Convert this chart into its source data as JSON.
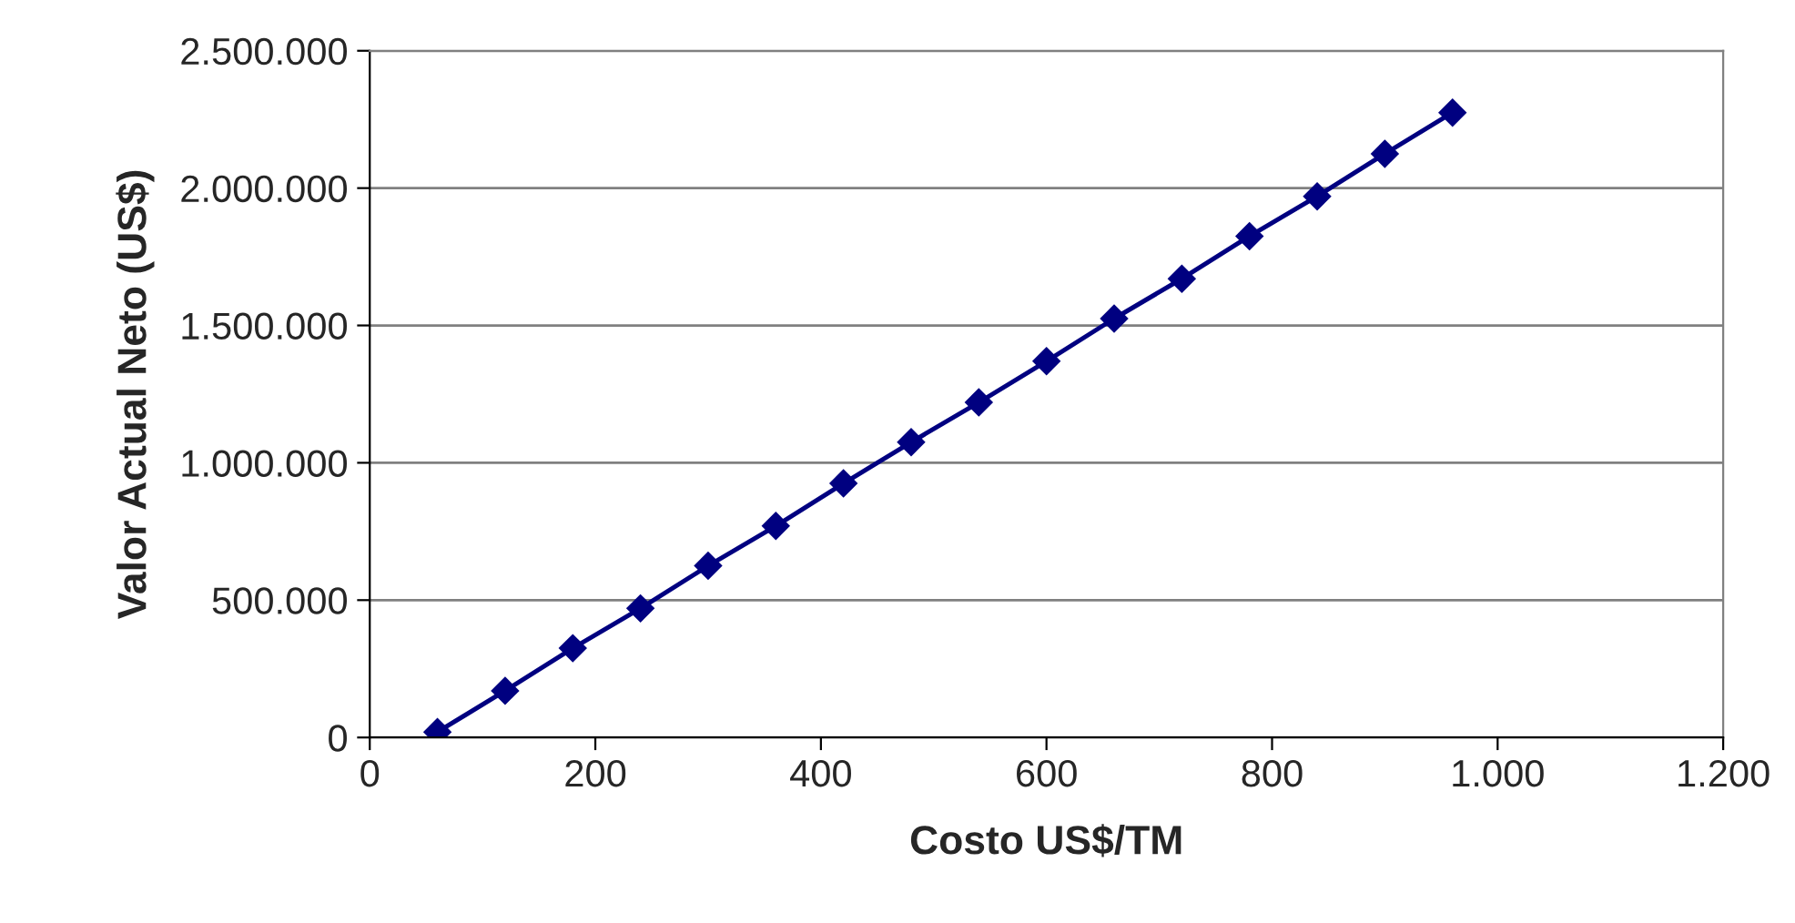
{
  "chart_data": {
    "type": "line",
    "xlabel": "Costo US$/TM",
    "ylabel": "Valor Actual Neto (US$)",
    "x": [
      60,
      120,
      180,
      240,
      300,
      360,
      420,
      480,
      540,
      600,
      660,
      720,
      780,
      840,
      900,
      960
    ],
    "series": [
      {
        "color": "#000080",
        "values": [
          20000,
          170000,
          325000,
          470000,
          625000,
          770000,
          925000,
          1075000,
          1220000,
          1370000,
          1525000,
          1670000,
          1825000,
          1970000,
          2125000,
          2275000
        ]
      }
    ],
    "xlim": [
      0,
      1200
    ],
    "xticks": [
      0,
      200,
      400,
      600,
      800,
      {
        "value": 1000,
        "label": "1.000"
      },
      {
        "value": 1200,
        "label": "1.200"
      }
    ],
    "ylim": [
      0,
      2500000
    ],
    "yticks": [
      0,
      {
        "value": 500000,
        "label": "500.000"
      },
      {
        "value": 1000000,
        "label": "1.000.000"
      },
      {
        "value": 1500000,
        "label": "1.500.000"
      },
      {
        "value": 2000000,
        "label": "2.000.000"
      },
      {
        "value": 2500000,
        "label": "2.500.000"
      }
    ],
    "grid": "y",
    "marker": "diamond",
    "line_style": "solid"
  }
}
